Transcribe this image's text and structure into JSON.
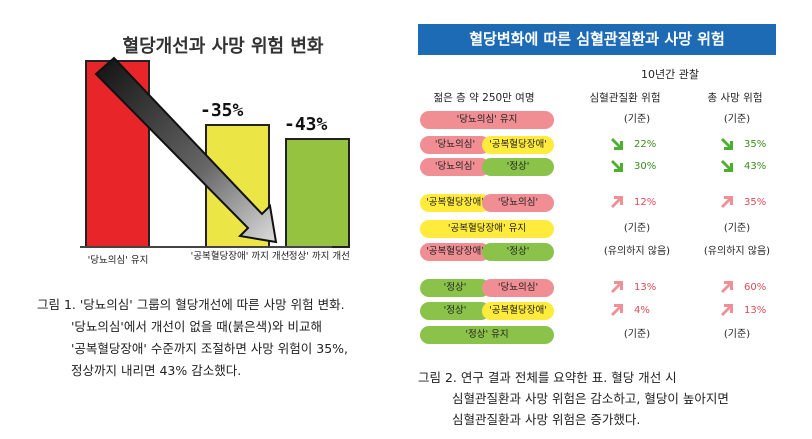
{
  "figure1": {
    "title": "혈당개선과 사망 위험 변화",
    "bars": [
      {
        "label": "'당뇨의심' 유지",
        "color": "#e8262a",
        "value": 100
      },
      {
        "label": "'공복혈당장애' 까지 개선",
        "color": "#ebe545",
        "value": 65,
        "change": "-35%"
      },
      {
        "label": "'정상' 까지 개선",
        "color": "#95c241",
        "value": 57,
        "change": "-43%"
      }
    ],
    "caption_lines": [
      "그림 1. '당뇨의심' 그룹의 혈당개선에 따른 사망 위험 변화.",
      "'당뇨의심'에서 개선이 없을 때(붉은색)와 비교해",
      "'공복혈당장애' 수준까지 조절하면 사망 위험이 35%,",
      "정상까지 내리면 43% 감소했다."
    ]
  },
  "figure2": {
    "banner": "혈당변화에 따른 심혈관질환과 사망 위험",
    "observation_header": "10년간 관찰",
    "col_headers": [
      "젊은 층 약 250만 여명",
      "심혈관질환 위험",
      "총 사망 위험"
    ],
    "rows": [
      {
        "from": "'당뇨의심' 유지",
        "from_color": "pink",
        "to": "",
        "to_color": "",
        "cv": "(기준)",
        "cv_dir": "none",
        "mort": "(기준)",
        "mort_dir": "none"
      },
      {
        "from": "'당뇨의심'",
        "from_color": "pink",
        "to": "'공복혈당장애'",
        "to_color": "yellow",
        "cv": "22%",
        "cv_dir": "down",
        "mort": "35%",
        "mort_dir": "down"
      },
      {
        "from": "'당뇨의심'",
        "from_color": "pink",
        "to": "'정상'",
        "to_color": "green",
        "cv": "30%",
        "cv_dir": "down",
        "mort": "43%",
        "mort_dir": "down"
      },
      {
        "from": "'공복혈당장애'",
        "from_color": "yellow",
        "to": "'당뇨의심'",
        "to_color": "pink",
        "cv": "12%",
        "cv_dir": "up",
        "mort": "35%",
        "mort_dir": "up"
      },
      {
        "from": "'공복혈당장애' 유지",
        "from_color": "yellow",
        "to": "",
        "to_color": "",
        "cv": "(기준)",
        "cv_dir": "none",
        "mort": "(기준)",
        "mort_dir": "none"
      },
      {
        "from": "'공복혈당장애'",
        "from_color": "pink",
        "to": "'정상'",
        "to_color": "green",
        "cv": "(유의하지 않음)",
        "cv_dir": "none",
        "mort": "(유의하지 않음)",
        "mort_dir": "none"
      },
      {
        "from": "'정상'",
        "from_color": "green",
        "to": "'당뇨의심'",
        "to_color": "pink",
        "cv": "13%",
        "cv_dir": "up",
        "mort": "60%",
        "mort_dir": "up"
      },
      {
        "from": "'정상'",
        "from_color": "green",
        "to": "'공복혈당장애'",
        "to_color": "yellow",
        "cv": "4%",
        "cv_dir": "up",
        "mort": "13%",
        "mort_dir": "up"
      },
      {
        "from": "'정상' 유지",
        "from_color": "green",
        "to": "",
        "to_color": "",
        "cv": "(기준)",
        "cv_dir": "none",
        "mort": "(기준)",
        "mort_dir": "none"
      }
    ],
    "caption_lines": [
      "그림 2. 연구 결과 전체를 요약한 표. 혈당 개선 시",
      "심혈관질환과 사망 위험은 감소하고, 혈당이 높아지면",
      "심혈관질환과 사망 위험은 증가했다."
    ]
  },
  "colors": {
    "pink": "#f08e94",
    "yellow": "#ffeb3b",
    "green": "#8bc34a",
    "banner": "#1c6bb4",
    "down_arrow": "#4caf30",
    "up_arrow": "#ef8f96"
  }
}
